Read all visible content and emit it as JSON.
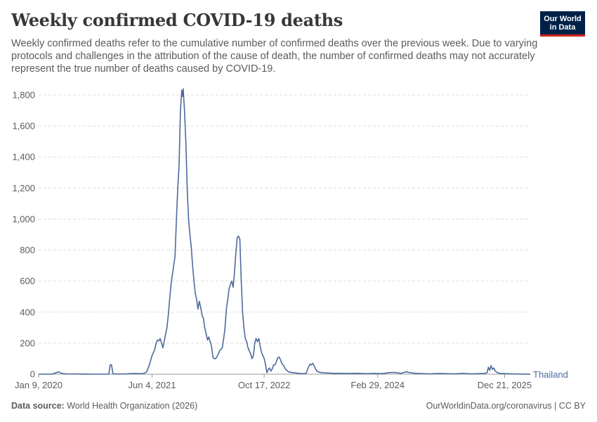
{
  "header": {
    "title": "Weekly confirmed COVID-19 deaths",
    "subtitle": "Weekly confirmed deaths refer to the cumulative number of confirmed deaths over the previous week. Due to varying protocols and challenges in the attribution of the cause of death, the number of confirmed deaths may not accurately represent the true number of deaths caused by COVID-19."
  },
  "logo": {
    "line1": "Our World",
    "line2": "in Data"
  },
  "footer": {
    "source_label": "Data source:",
    "source_text": "World Health Organization (2026)",
    "link": "OurWorldinData.org/coronavirus | CC BY"
  },
  "colors": {
    "series": "#4c6a9c",
    "grid": "#dddddd",
    "text": "#5b5b5b"
  },
  "chart_data": {
    "type": "line",
    "title": "Weekly confirmed COVID-19 deaths",
    "xlabel": "",
    "ylabel": "",
    "ylim": [
      0,
      1800
    ],
    "xlim": [
      0,
      364
    ],
    "yticks": [
      0,
      200,
      400,
      600,
      800,
      1000,
      1200,
      1400,
      1600,
      1800
    ],
    "ytick_labels": [
      "0",
      "200",
      "400",
      "600",
      "800",
      "1,000",
      "1,200",
      "1,400",
      "1,600",
      "1,800"
    ],
    "xticks": [
      {
        "week": 0,
        "label": "Jan 9, 2020"
      },
      {
        "week": 84,
        "label": "Jun 4, 2021"
      },
      {
        "week": 167,
        "label": "Oct 17, 2022"
      },
      {
        "week": 251,
        "label": "Feb 29, 2024"
      },
      {
        "week": 345,
        "label": "Dec 21, 2025"
      }
    ],
    "series": [
      {
        "name": "Thailand",
        "points": [
          [
            0,
            0
          ],
          [
            10,
            0
          ],
          [
            13,
            10
          ],
          [
            15,
            15
          ],
          [
            17,
            5
          ],
          [
            20,
            2
          ],
          [
            40,
            0
          ],
          [
            50,
            0
          ],
          [
            52,
            2
          ],
          [
            53,
            60
          ],
          [
            54,
            60
          ],
          [
            55,
            2
          ],
          [
            60,
            1
          ],
          [
            65,
            2
          ],
          [
            70,
            4
          ],
          [
            75,
            3
          ],
          [
            78,
            5
          ],
          [
            80,
            15
          ],
          [
            82,
            60
          ],
          [
            84,
            120
          ],
          [
            86,
            160
          ],
          [
            87,
            200
          ],
          [
            88,
            220
          ],
          [
            89,
            215
          ],
          [
            90,
            230
          ],
          [
            91,
            200
          ],
          [
            92,
            170
          ],
          [
            93,
            210
          ],
          [
            94,
            260
          ],
          [
            95,
            300
          ],
          [
            96,
            380
          ],
          [
            97,
            480
          ],
          [
            98,
            580
          ],
          [
            99,
            640
          ],
          [
            100,
            700
          ],
          [
            101,
            760
          ],
          [
            102,
            1000
          ],
          [
            103,
            1200
          ],
          [
            104,
            1350
          ],
          [
            105,
            1700
          ],
          [
            106,
            1830
          ],
          [
            106.5,
            1790
          ],
          [
            107,
            1840
          ],
          [
            108,
            1700
          ],
          [
            109,
            1500
          ],
          [
            110,
            1200
          ],
          [
            111,
            1000
          ],
          [
            112,
            900
          ],
          [
            113,
            820
          ],
          [
            114,
            700
          ],
          [
            115,
            600
          ],
          [
            116,
            520
          ],
          [
            117,
            480
          ],
          [
            118,
            420
          ],
          [
            119,
            470
          ],
          [
            120,
            430
          ],
          [
            121,
            380
          ],
          [
            122,
            360
          ],
          [
            123,
            300
          ],
          [
            124,
            260
          ],
          [
            125,
            220
          ],
          [
            126,
            240
          ],
          [
            127,
            210
          ],
          [
            128,
            180
          ],
          [
            129,
            110
          ],
          [
            130,
            100
          ],
          [
            131,
            100
          ],
          [
            132,
            110
          ],
          [
            133,
            130
          ],
          [
            134,
            150
          ],
          [
            135,
            160
          ],
          [
            136,
            170
          ],
          [
            137,
            230
          ],
          [
            138,
            300
          ],
          [
            139,
            420
          ],
          [
            140,
            480
          ],
          [
            141,
            550
          ],
          [
            142,
            580
          ],
          [
            143,
            600
          ],
          [
            144,
            560
          ],
          [
            145,
            650
          ],
          [
            146,
            780
          ],
          [
            147,
            880
          ],
          [
            148,
            890
          ],
          [
            149,
            870
          ],
          [
            150,
            600
          ],
          [
            151,
            400
          ],
          [
            152,
            300
          ],
          [
            153,
            230
          ],
          [
            154,
            210
          ],
          [
            155,
            170
          ],
          [
            156,
            150
          ],
          [
            157,
            130
          ],
          [
            158,
            100
          ],
          [
            159,
            120
          ],
          [
            160,
            200
          ],
          [
            161,
            230
          ],
          [
            162,
            210
          ],
          [
            163,
            230
          ],
          [
            164,
            180
          ],
          [
            165,
            140
          ],
          [
            166,
            120
          ],
          [
            167,
            100
          ],
          [
            168,
            60
          ],
          [
            169,
            10
          ],
          [
            170,
            30
          ],
          [
            171,
            40
          ],
          [
            172,
            20
          ],
          [
            173,
            35
          ],
          [
            174,
            60
          ],
          [
            175,
            60
          ],
          [
            176,
            80
          ],
          [
            177,
            105
          ],
          [
            178,
            110
          ],
          [
            179,
            95
          ],
          [
            180,
            70
          ],
          [
            181,
            60
          ],
          [
            182,
            45
          ],
          [
            183,
            30
          ],
          [
            185,
            15
          ],
          [
            188,
            10
          ],
          [
            190,
            8
          ],
          [
            193,
            5
          ],
          [
            196,
            3
          ],
          [
            198,
            5
          ],
          [
            200,
            50
          ],
          [
            201,
            65
          ],
          [
            202,
            60
          ],
          [
            203,
            70
          ],
          [
            204,
            55
          ],
          [
            205,
            35
          ],
          [
            206,
            20
          ],
          [
            208,
            12
          ],
          [
            212,
            8
          ],
          [
            218,
            6
          ],
          [
            224,
            5
          ],
          [
            230,
            4
          ],
          [
            236,
            6
          ],
          [
            242,
            3
          ],
          [
            248,
            5
          ],
          [
            254,
            3
          ],
          [
            258,
            8
          ],
          [
            262,
            12
          ],
          [
            265,
            10
          ],
          [
            268,
            5
          ],
          [
            272,
            15
          ],
          [
            276,
            8
          ],
          [
            280,
            5
          ],
          [
            285,
            3
          ],
          [
            290,
            2
          ],
          [
            296,
            4
          ],
          [
            302,
            3
          ],
          [
            308,
            2
          ],
          [
            314,
            5
          ],
          [
            320,
            2
          ],
          [
            325,
            3
          ],
          [
            330,
            5
          ],
          [
            332,
            10
          ],
          [
            333,
            45
          ],
          [
            334,
            25
          ],
          [
            335,
            55
          ],
          [
            336,
            30
          ],
          [
            337,
            40
          ],
          [
            338,
            20
          ],
          [
            339,
            15
          ],
          [
            340,
            8
          ],
          [
            342,
            5
          ],
          [
            346,
            3
          ],
          [
            350,
            2
          ],
          [
            355,
            1
          ],
          [
            360,
            1
          ],
          [
            364,
            0
          ]
        ]
      }
    ]
  }
}
